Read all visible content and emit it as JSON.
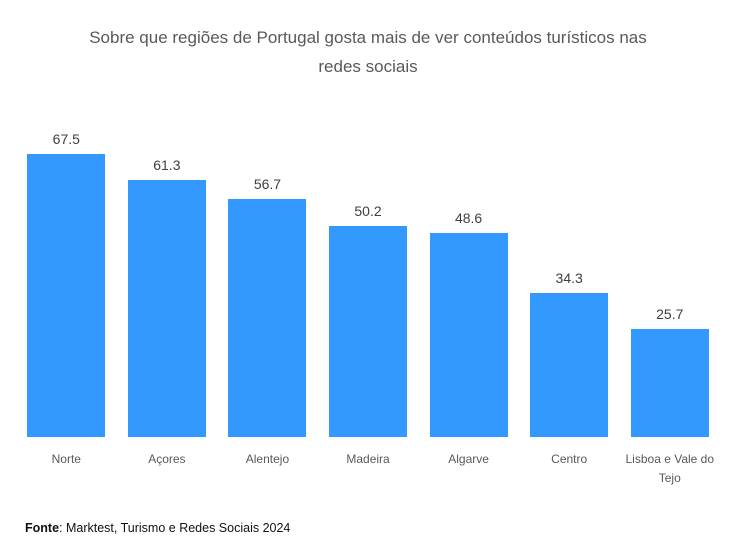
{
  "chart": {
    "title": "Sobre que regiões de Portugal gosta mais de ver conteúdos turísticos nas redes sociais"
  },
  "chart_data": {
    "type": "bar",
    "title": "Sobre que regiões de Portugal gosta mais de ver conteúdos turísticos nas redes sociais",
    "categories": [
      "Norte",
      "Açores",
      "Alentejo",
      "Madeira",
      "Algarve",
      "Centro",
      "Lisboa e Vale do Tejo"
    ],
    "values": [
      67.5,
      61.3,
      56.7,
      50.2,
      48.6,
      34.3,
      25.7
    ],
    "xlabel": "",
    "ylabel": "",
    "ylim": [
      0,
      75
    ],
    "grid": false,
    "legend": false,
    "value_labels": true,
    "bar_color": "#3399FF"
  },
  "footer": {
    "bold": "Fonte",
    "rest": ": Marktest, Turismo e Redes Sociais 2024"
  },
  "colors": {
    "bar": "#3399FF",
    "title_text": "#595959",
    "value_text": "#3f3f3f",
    "category_text": "#595959",
    "background": "#ffffff"
  }
}
